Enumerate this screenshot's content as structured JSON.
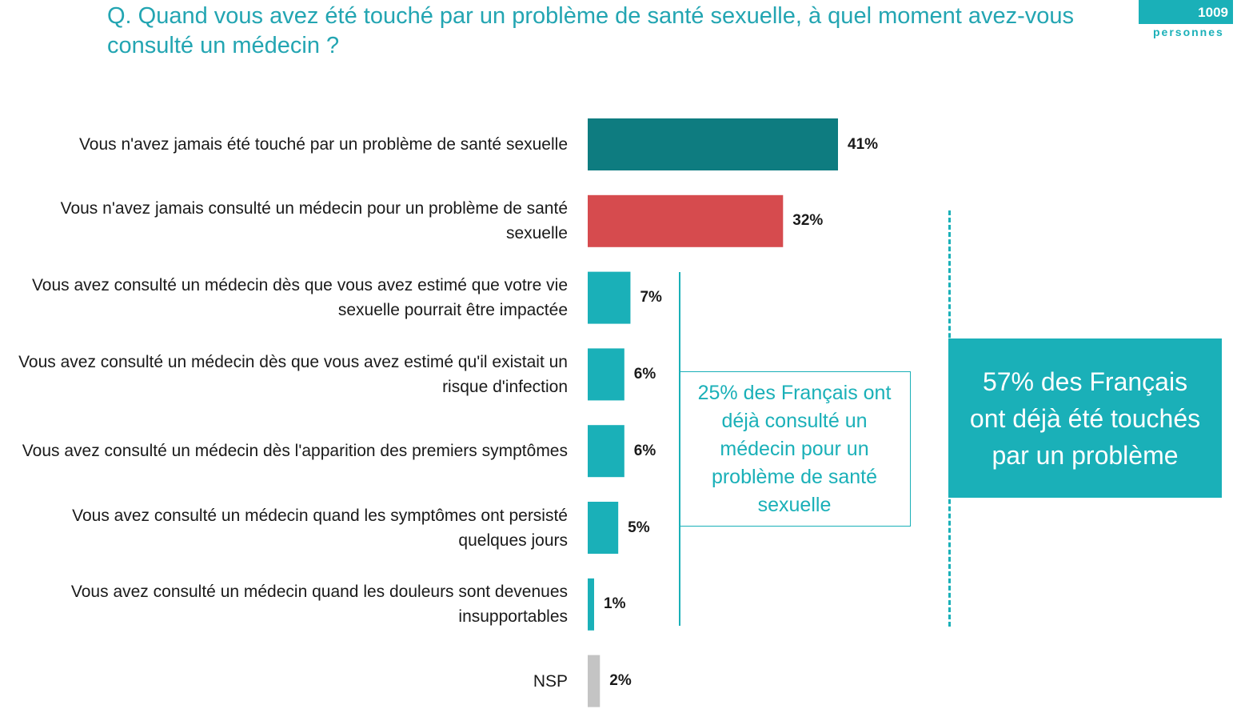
{
  "question": "Q. Quand vous avez été touché par un problème de santé sexuelle, à quel moment avez-vous consulté un médecin ?",
  "badge": {
    "count": "1009",
    "unit": "personnes"
  },
  "colors": {
    "dark_teal": "#0e7c80",
    "red": "#d64b4e",
    "teal": "#1ab0b8",
    "grey": "#c4c4c4"
  },
  "chart_data": {
    "type": "bar",
    "orientation": "horizontal",
    "categories": [
      "Vous n'avez jamais été touché par un problème de santé sexuelle",
      "Vous n'avez jamais consulté un médecin pour un problème de santé sexuelle",
      "Vous avez consulté un médecin dès que vous avez estimé que votre vie sexuelle pourrait être impactée",
      "Vous avez consulté un médecin dès que vous avez estimé qu'il existait un risque d'infection",
      "Vous avez consulté un médecin dès l'apparition des premiers symptômes",
      "Vous avez consulté un médecin quand les symptômes ont persisté quelques jours",
      "Vous avez consulté un médecin quand les douleurs sont devenues insupportables",
      "NSP"
    ],
    "values": [
      41,
      32,
      7,
      6,
      6,
      5,
      1,
      2
    ],
    "value_labels": [
      "41%",
      "32%",
      "7%",
      "6%",
      "6%",
      "5%",
      "1%",
      "2%"
    ],
    "bar_colors": [
      "#0e7c80",
      "#d64b4e",
      "#1ab0b8",
      "#1ab0b8",
      "#1ab0b8",
      "#1ab0b8",
      "#1ab0b8",
      "#c4c4c4"
    ],
    "unit": "%",
    "grid": false
  },
  "callouts": {
    "consulted": "25% des Français ont déjà consulté un médecin pour un problème de santé sexuelle",
    "affected": "57% des Français ont déjà été touchés par un problème"
  }
}
